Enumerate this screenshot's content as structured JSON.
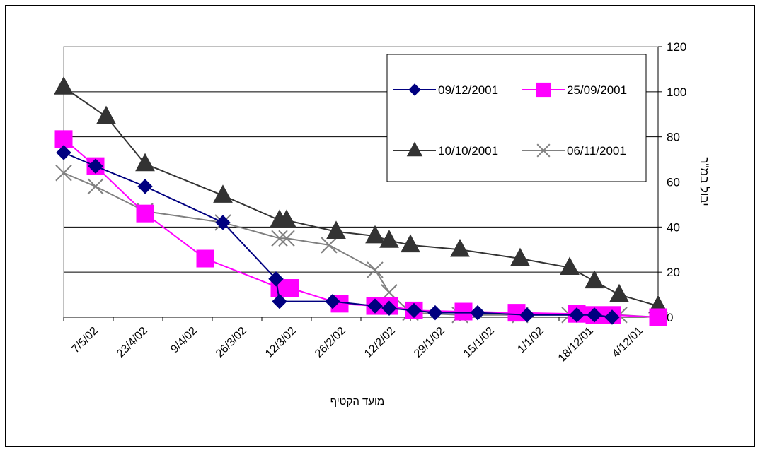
{
  "chart_data": {
    "type": "line",
    "title": "",
    "xlabel": "מועד הקטיף",
    "ylabel": "יבול במ\"ר",
    "x_tick_labels": [
      "7/5/02",
      "23/4/02",
      "9/4/02",
      "26/3/02",
      "12/3/02",
      "26/2/02",
      "12/2/02",
      "29/1/02",
      "15/1/02",
      "1/1/02",
      "18/12/01",
      "4/12/01"
    ],
    "x_axis_direction": "right-to-left (dates run backward from 7/5/02 on the left to 4/12/01 on the right)",
    "y_ticks": [
      0,
      20,
      40,
      60,
      80,
      100,
      120
    ],
    "ylim": [
      0,
      120
    ],
    "y_axis_position": "right",
    "grid": "horizontal major gridlines",
    "legend_position": "top-right inside plot area",
    "series": [
      {
        "name": "09/12/2001",
        "color": "#000080",
        "marker": "diamond",
        "x": [
          "14/5/02",
          "5/5/02",
          "21/4/02",
          "30/3/02",
          "15/3/02",
          "14/3/02",
          "27/2/02",
          "15/2/02",
          "11/2/02",
          "4/2/02",
          "29/1/02",
          "17/1/02",
          "3/1/02",
          "20/12/01",
          "15/12/01",
          "10/12/01"
        ],
        "y": [
          73,
          67,
          58,
          42,
          17,
          7,
          7,
          5,
          4,
          3,
          2,
          2,
          1,
          1,
          1,
          0
        ]
      },
      {
        "name": "25/09/2001",
        "color": "#ff00ff",
        "marker": "square",
        "x": [
          "14/5/02",
          "5/5/02",
          "21/4/02",
          "4/4/02",
          "14/3/02",
          "11/3/02",
          "25/2/02",
          "15/2/02",
          "11/2/02",
          "4/2/02",
          "21/1/02",
          "6/1/02",
          "20/12/01",
          "15/12/01",
          "10/12/01",
          "27/11/01"
        ],
        "y": [
          79,
          67,
          46,
          26,
          13,
          13,
          6,
          5,
          5,
          3,
          2.5,
          2,
          1.5,
          1,
          1,
          0
        ]
      },
      {
        "name": "10/10/2001",
        "color": "#333333",
        "marker": "triangle",
        "x": [
          "14/5/02",
          "2/5/02",
          "21/4/02",
          "30/3/02",
          "14/3/02",
          "12/3/02",
          "26/2/02",
          "15/2/02",
          "11/2/02",
          "5/2/02",
          "22/1/02",
          "5/1/02",
          "22/12/01",
          "15/12/01",
          "8/12/01",
          "27/11/01"
        ],
        "y": [
          102,
          89,
          68,
          54,
          43,
          43,
          38,
          36,
          34,
          32,
          30,
          26,
          22,
          16,
          10,
          5
        ]
      },
      {
        "name": "06/11/2001",
        "color": "#808080",
        "marker": "x",
        "x": [
          "14/5/02",
          "5/5/02",
          "21/4/02",
          "30/3/02",
          "14/3/02",
          "12/3/02",
          "28/2/02",
          "15/2/02",
          "11/2/02",
          "5/2/02",
          "22/1/02",
          "5/1/02",
          "22/12/01",
          "15/12/01",
          "8/12/01",
          "27/11/01"
        ],
        "y": [
          64,
          58,
          47,
          42,
          35,
          35,
          32,
          21,
          11,
          2,
          1,
          1,
          1,
          1,
          1,
          0
        ]
      }
    ]
  }
}
